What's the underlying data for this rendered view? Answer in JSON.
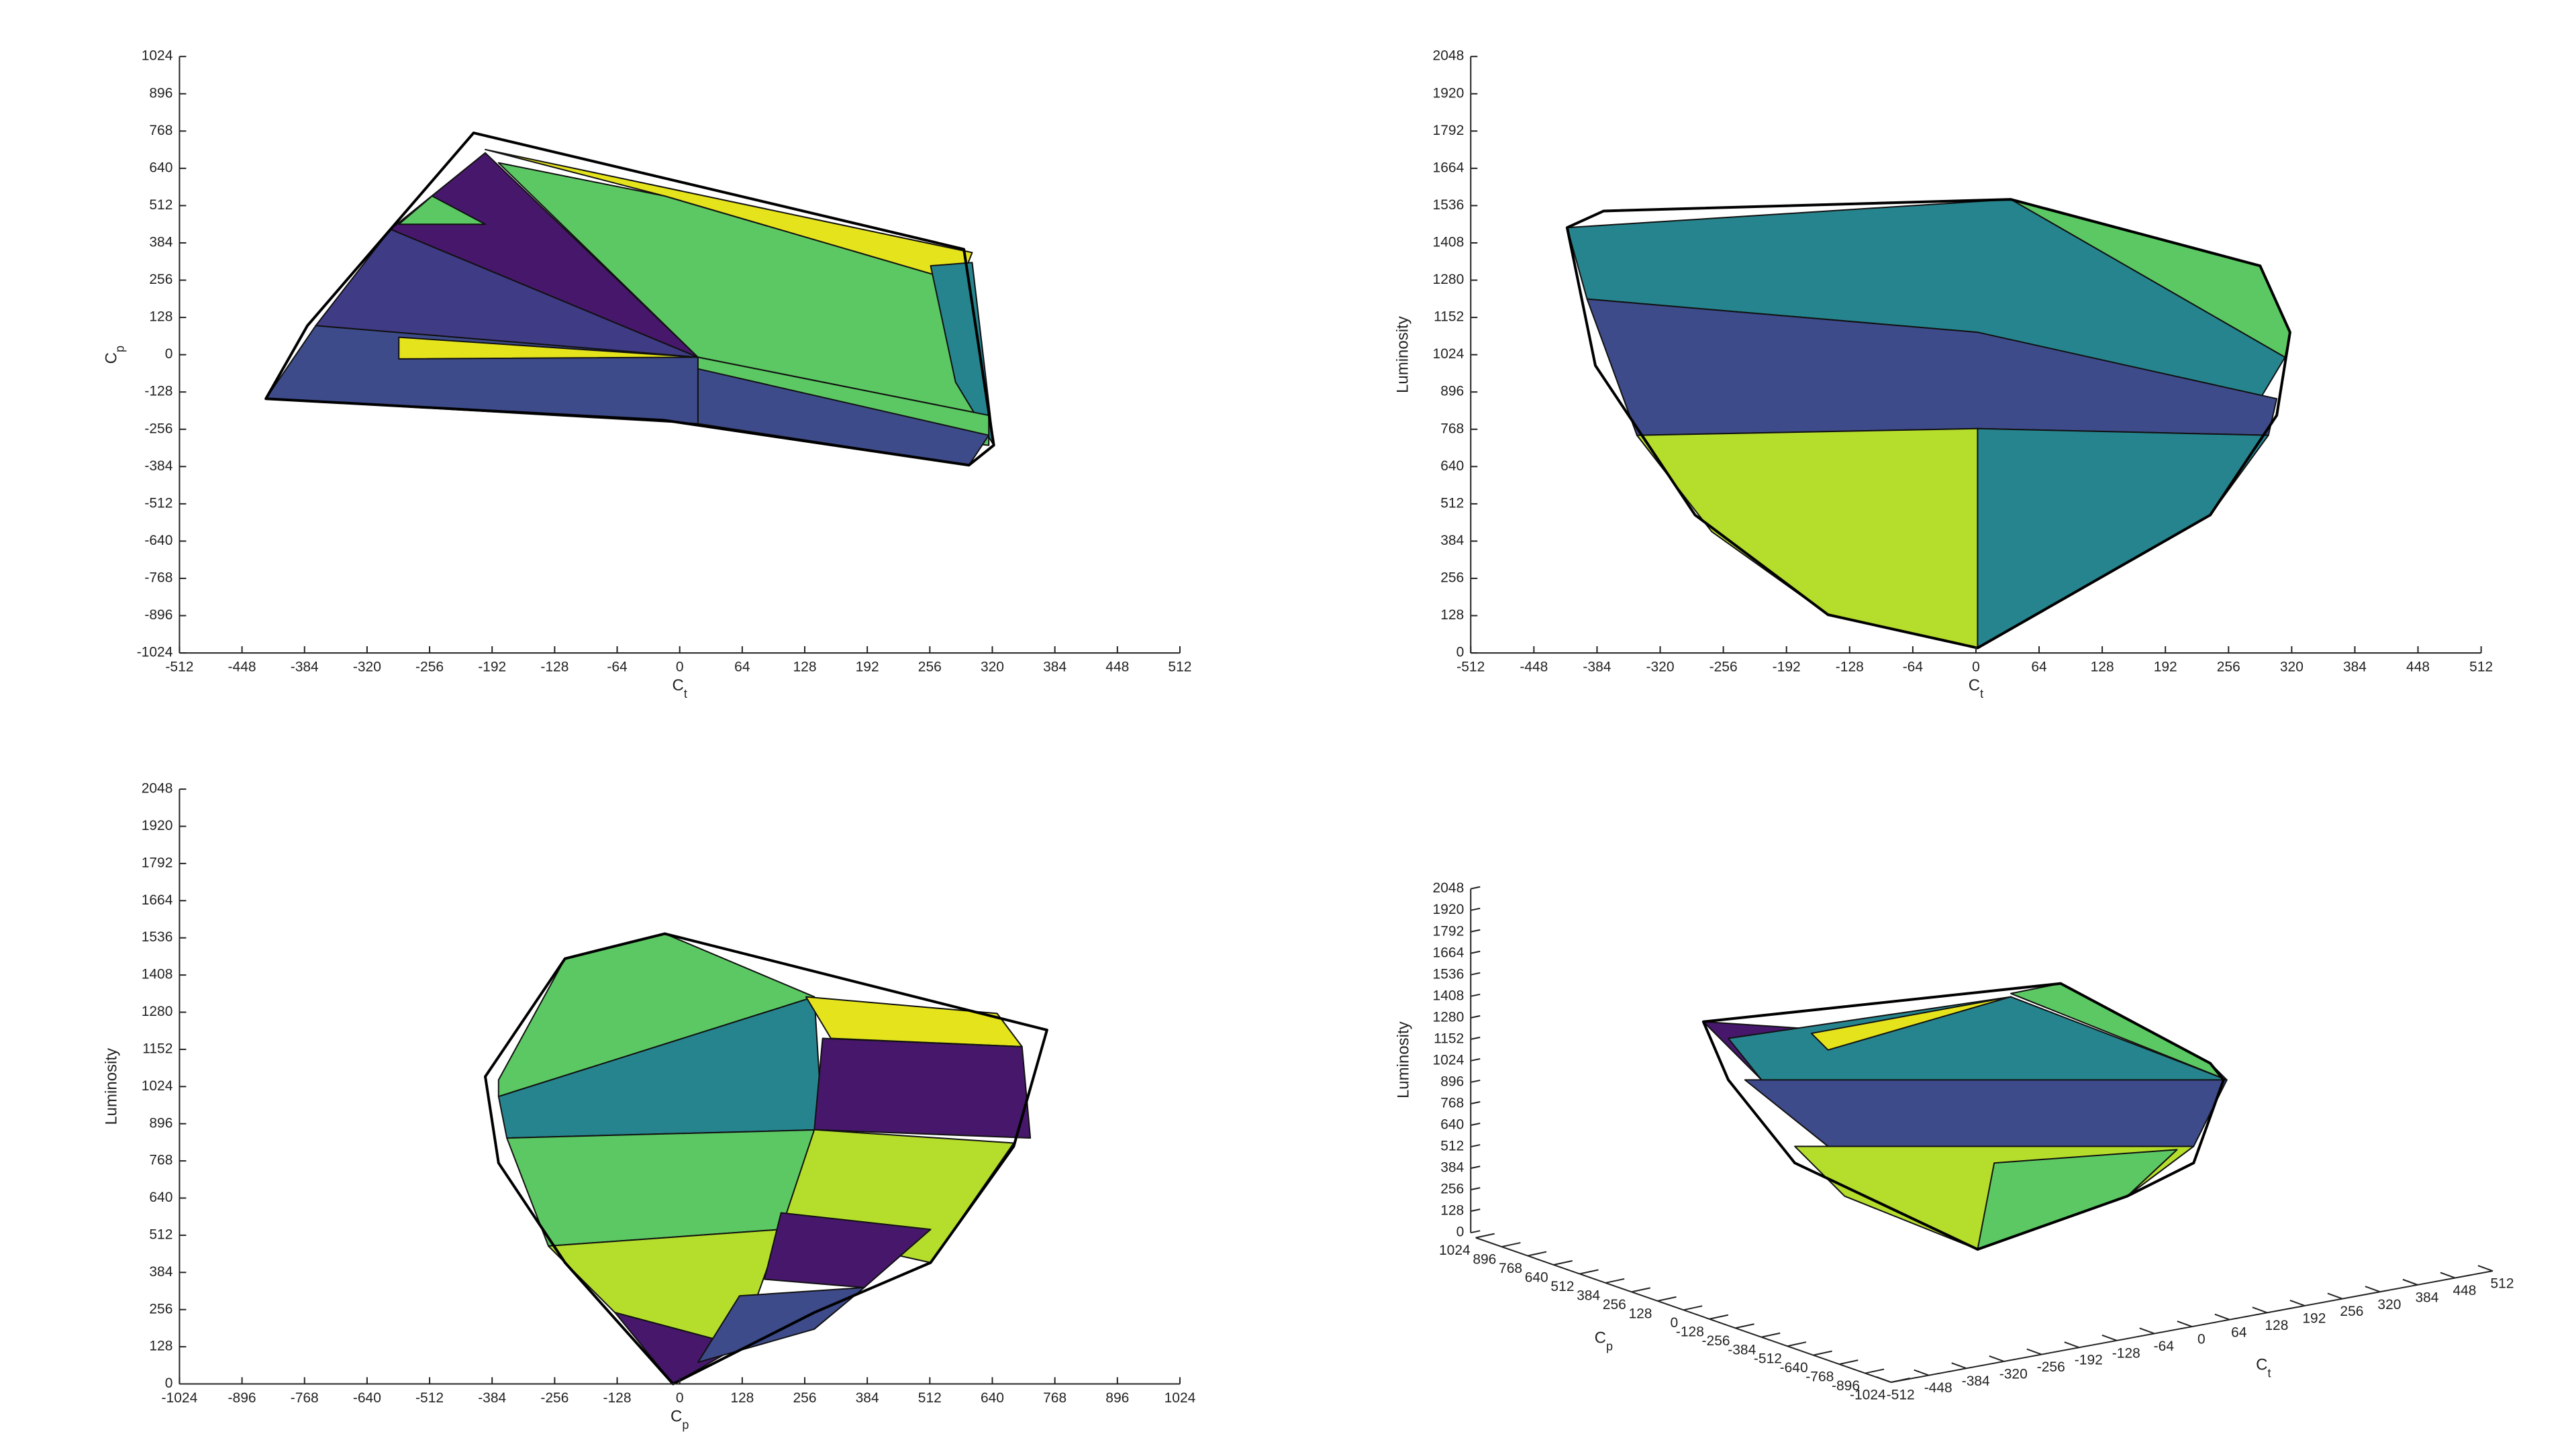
{
  "chart_data": [
    {
      "type": "surface",
      "xlabel": [
        "C",
        "t"
      ],
      "ylabel": [
        "C",
        "p"
      ],
      "xlim": [
        -512,
        512
      ],
      "ylim": [
        -1024,
        1024
      ],
      "xticks": [
        -512,
        -448,
        -384,
        -320,
        -256,
        -192,
        -128,
        -64,
        0,
        64,
        128,
        192,
        256,
        320,
        384,
        448,
        512
      ],
      "yticks": [
        -1024,
        -896,
        -768,
        -640,
        -512,
        -384,
        -256,
        -128,
        0,
        128,
        256,
        384,
        512,
        640,
        768,
        896,
        1024
      ]
    },
    {
      "type": "surface",
      "xlabel": [
        "C",
        "t"
      ],
      "ylabel": "Luminosity",
      "xlim": [
        -512,
        512
      ],
      "ylim": [
        0,
        2048
      ],
      "xticks": [
        -512,
        -448,
        -384,
        -320,
        -256,
        -192,
        -128,
        -64,
        0,
        64,
        128,
        192,
        256,
        320,
        384,
        448,
        512
      ],
      "yticks": [
        0,
        128,
        256,
        384,
        512,
        640,
        768,
        896,
        1024,
        1152,
        1280,
        1408,
        1536,
        1664,
        1792,
        1920,
        2048
      ]
    },
    {
      "type": "surface",
      "xlabel": [
        "C",
        "p"
      ],
      "ylabel": "Luminosity",
      "xlim": [
        -1024,
        1024
      ],
      "ylim": [
        0,
        2048
      ],
      "xticks": [
        -1024,
        -896,
        -768,
        -640,
        -512,
        -384,
        -256,
        -128,
        0,
        128,
        256,
        384,
        512,
        640,
        768,
        896,
        1024
      ],
      "yticks": [
        0,
        128,
        256,
        384,
        512,
        640,
        768,
        896,
        1024,
        1152,
        1280,
        1408,
        1536,
        1664,
        1792,
        1920,
        2048
      ]
    },
    {
      "type": "surface3d",
      "xlabel": [
        "C",
        "t"
      ],
      "ylabel": [
        "C",
        "p"
      ],
      "zlabel": "Luminosity",
      "xlim": [
        -512,
        512
      ],
      "ylim": [
        -1024,
        1024
      ],
      "zlim": [
        0,
        2048
      ],
      "xticks": [
        -512,
        -448,
        -384,
        -320,
        -256,
        -192,
        -128,
        -64,
        0,
        64,
        128,
        192,
        256,
        320,
        384,
        448,
        512
      ],
      "yticks": [
        -1024,
        -896,
        -768,
        -640,
        -512,
        -384,
        -256,
        -128,
        0,
        128,
        256,
        384,
        512,
        640,
        768,
        896,
        1024
      ],
      "zticks": [
        0,
        128,
        256,
        384,
        512,
        640,
        768,
        896,
        1024,
        1152,
        1280,
        1408,
        1536,
        1664,
        1792,
        1920,
        2048
      ]
    }
  ]
}
